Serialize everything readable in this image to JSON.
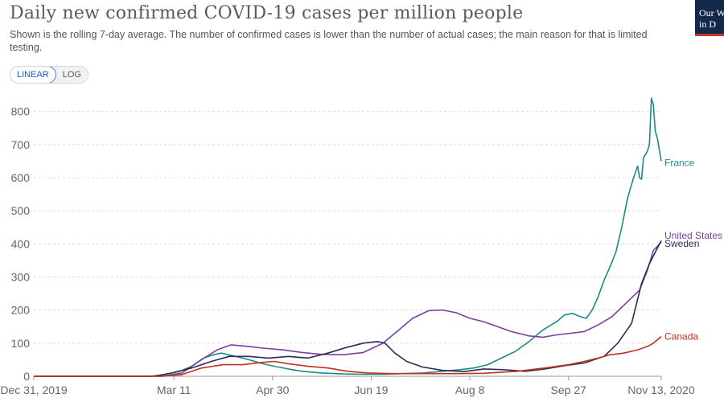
{
  "title": "Daily new confirmed COVID-19 cases per million people",
  "subtitle": "Shown is the rolling 7-day average. The number of confirmed cases is lower than the number of actual cases; the main reason for that is limited testing.",
  "logo": {
    "line1": "Our W",
    "line2": "in D"
  },
  "scale_toggle": {
    "linear": "LINEAR",
    "log": "LOG",
    "selected": "LINEAR"
  },
  "chart_data": {
    "type": "line",
    "y_scale": "linear",
    "ylim": [
      0,
      850
    ],
    "y_ticks": [
      0,
      100,
      200,
      300,
      400,
      500,
      600,
      700,
      800
    ],
    "x_range": [
      "2019-12-31",
      "2020-11-13"
    ],
    "x_ticks": [
      "Dec 31, 2019",
      "Mar 11",
      "Apr 30",
      "Jun 19",
      "Aug 8",
      "Sep 27",
      "Nov 13, 2020"
    ],
    "x_tick_dates": [
      "2019-12-31",
      "2020-03-11",
      "2020-04-30",
      "2020-06-19",
      "2020-08-08",
      "2020-09-27",
      "2020-11-13"
    ],
    "grid": "horizontal dashed",
    "legend": "end-of-line labels",
    "series": [
      {
        "name": "France",
        "color": "#1d8a85",
        "points": [
          [
            "2019-12-31",
            0
          ],
          [
            "2020-02-28",
            0
          ],
          [
            "2020-03-06",
            5
          ],
          [
            "2020-03-14",
            15
          ],
          [
            "2020-03-20",
            30
          ],
          [
            "2020-03-26",
            55
          ],
          [
            "2020-03-31",
            65
          ],
          [
            "2020-04-04",
            70
          ],
          [
            "2020-04-10",
            62
          ],
          [
            "2020-04-18",
            50
          ],
          [
            "2020-04-25",
            38
          ],
          [
            "2020-05-01",
            30
          ],
          [
            "2020-05-08",
            22
          ],
          [
            "2020-05-15",
            15
          ],
          [
            "2020-05-25",
            10
          ],
          [
            "2020-06-05",
            7
          ],
          [
            "2020-06-15",
            6
          ],
          [
            "2020-06-25",
            6
          ],
          [
            "2020-07-05",
            8
          ],
          [
            "2020-07-15",
            10
          ],
          [
            "2020-07-25",
            15
          ],
          [
            "2020-08-03",
            20
          ],
          [
            "2020-08-10",
            25
          ],
          [
            "2020-08-17",
            35
          ],
          [
            "2020-08-24",
            55
          ],
          [
            "2020-08-31",
            75
          ],
          [
            "2020-09-07",
            105
          ],
          [
            "2020-09-14",
            140
          ],
          [
            "2020-09-21",
            165
          ],
          [
            "2020-09-25",
            185
          ],
          [
            "2020-09-29",
            190
          ],
          [
            "2020-10-03",
            180
          ],
          [
            "2020-10-06",
            175
          ],
          [
            "2020-10-09",
            200
          ],
          [
            "2020-10-12",
            240
          ],
          [
            "2020-10-15",
            290
          ],
          [
            "2020-10-18",
            330
          ],
          [
            "2020-10-21",
            375
          ],
          [
            "2020-10-24",
            450
          ],
          [
            "2020-10-27",
            540
          ],
          [
            "2020-10-30",
            600
          ],
          [
            "2020-11-01",
            635
          ],
          [
            "2020-11-02",
            600
          ],
          [
            "2020-11-03",
            595
          ],
          [
            "2020-11-04",
            660
          ],
          [
            "2020-11-06",
            680
          ],
          [
            "2020-11-07",
            700
          ],
          [
            "2020-11-08",
            840
          ],
          [
            "2020-11-09",
            820
          ],
          [
            "2020-11-10",
            740
          ],
          [
            "2020-11-11",
            720
          ],
          [
            "2020-11-13",
            650
          ]
        ]
      },
      {
        "name": "United States",
        "color": "#7b3fa0",
        "points": [
          [
            "2019-12-31",
            0
          ],
          [
            "2020-03-05",
            0
          ],
          [
            "2020-03-15",
            10
          ],
          [
            "2020-03-25",
            50
          ],
          [
            "2020-04-02",
            80
          ],
          [
            "2020-04-09",
            95
          ],
          [
            "2020-04-18",
            90
          ],
          [
            "2020-04-25",
            85
          ],
          [
            "2020-05-05",
            80
          ],
          [
            "2020-05-15",
            72
          ],
          [
            "2020-05-25",
            66
          ],
          [
            "2020-06-05",
            65
          ],
          [
            "2020-06-15",
            72
          ],
          [
            "2020-06-25",
            100
          ],
          [
            "2020-07-03",
            140
          ],
          [
            "2020-07-10",
            175
          ],
          [
            "2020-07-18",
            198
          ],
          [
            "2020-07-25",
            200
          ],
          [
            "2020-08-01",
            192
          ],
          [
            "2020-08-08",
            175
          ],
          [
            "2020-08-15",
            165
          ],
          [
            "2020-08-22",
            150
          ],
          [
            "2020-08-29",
            135
          ],
          [
            "2020-09-07",
            122
          ],
          [
            "2020-09-14",
            118
          ],
          [
            "2020-09-21",
            125
          ],
          [
            "2020-09-28",
            130
          ],
          [
            "2020-10-05",
            135
          ],
          [
            "2020-10-12",
            155
          ],
          [
            "2020-10-19",
            180
          ],
          [
            "2020-10-26",
            220
          ],
          [
            "2020-11-02",
            260
          ],
          [
            "2020-11-06",
            320
          ],
          [
            "2020-11-09",
            380
          ],
          [
            "2020-11-13",
            405
          ]
        ]
      },
      {
        "name": "Sweden",
        "color": "#2c2c54",
        "points": [
          [
            "2019-12-31",
            0
          ],
          [
            "2020-03-01",
            0
          ],
          [
            "2020-03-10",
            10
          ],
          [
            "2020-03-20",
            25
          ],
          [
            "2020-03-30",
            45
          ],
          [
            "2020-04-08",
            60
          ],
          [
            "2020-04-18",
            60
          ],
          [
            "2020-04-28",
            55
          ],
          [
            "2020-05-08",
            60
          ],
          [
            "2020-05-18",
            55
          ],
          [
            "2020-05-28",
            70
          ],
          [
            "2020-06-07",
            88
          ],
          [
            "2020-06-15",
            100
          ],
          [
            "2020-06-22",
            105
          ],
          [
            "2020-06-26",
            100
          ],
          [
            "2020-07-01",
            70
          ],
          [
            "2020-07-07",
            45
          ],
          [
            "2020-07-15",
            28
          ],
          [
            "2020-07-25",
            18
          ],
          [
            "2020-08-05",
            14
          ],
          [
            "2020-08-15",
            22
          ],
          [
            "2020-08-25",
            20
          ],
          [
            "2020-09-05",
            15
          ],
          [
            "2020-09-15",
            22
          ],
          [
            "2020-09-25",
            32
          ],
          [
            "2020-10-05",
            40
          ],
          [
            "2020-10-15",
            60
          ],
          [
            "2020-10-22",
            100
          ],
          [
            "2020-10-29",
            160
          ],
          [
            "2020-11-03",
            280
          ],
          [
            "2020-11-07",
            340
          ],
          [
            "2020-11-10",
            375
          ],
          [
            "2020-11-13",
            410
          ]
        ]
      },
      {
        "name": "Canada",
        "color": "#c0311f",
        "points": [
          [
            "2019-12-31",
            0
          ],
          [
            "2020-03-05",
            0
          ],
          [
            "2020-03-15",
            5
          ],
          [
            "2020-03-25",
            25
          ],
          [
            "2020-04-05",
            35
          ],
          [
            "2020-04-15",
            35
          ],
          [
            "2020-04-25",
            42
          ],
          [
            "2020-05-01",
            45
          ],
          [
            "2020-05-08",
            38
          ],
          [
            "2020-05-18",
            30
          ],
          [
            "2020-05-28",
            25
          ],
          [
            "2020-06-07",
            15
          ],
          [
            "2020-06-17",
            10
          ],
          [
            "2020-06-30",
            8
          ],
          [
            "2020-07-15",
            8
          ],
          [
            "2020-08-01",
            8
          ],
          [
            "2020-08-15",
            9
          ],
          [
            "2020-09-01",
            15
          ],
          [
            "2020-09-15",
            25
          ],
          [
            "2020-09-27",
            35
          ],
          [
            "2020-10-05",
            45
          ],
          [
            "2020-10-12",
            55
          ],
          [
            "2020-10-18",
            65
          ],
          [
            "2020-10-25",
            70
          ],
          [
            "2020-11-01",
            80
          ],
          [
            "2020-11-06",
            90
          ],
          [
            "2020-11-09",
            100
          ],
          [
            "2020-11-13",
            120
          ]
        ]
      }
    ]
  }
}
